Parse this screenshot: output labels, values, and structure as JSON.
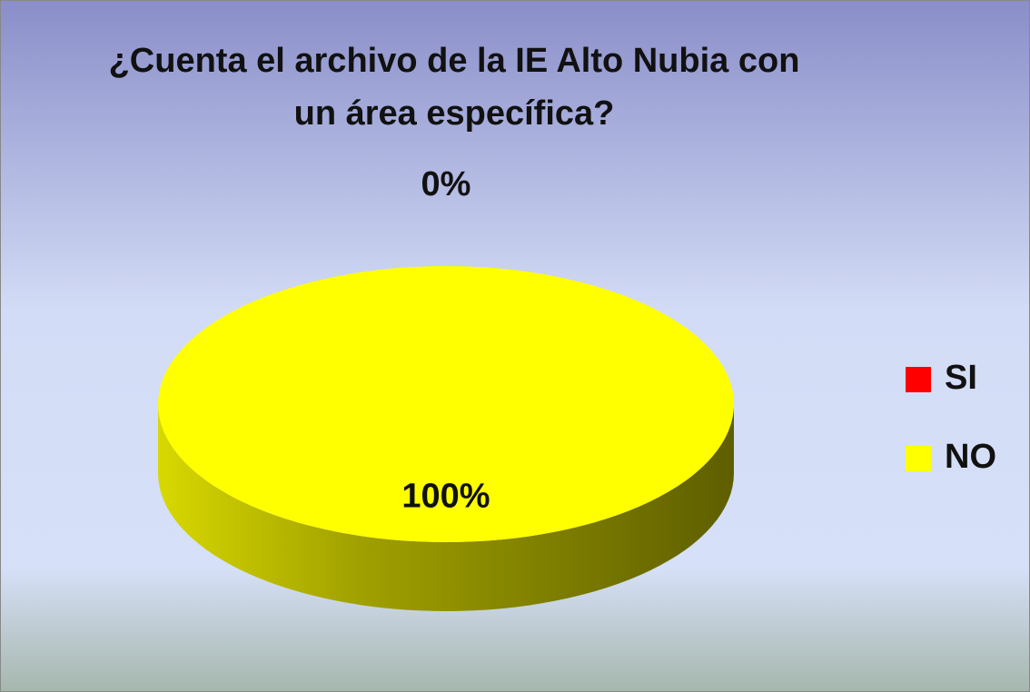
{
  "chart_data": {
    "type": "pie",
    "title": "¿Cuenta el archivo de la IE Alto Nubia con un área específica?",
    "categories": [
      "SI",
      "NO"
    ],
    "values": [
      0,
      100
    ],
    "value_labels": [
      "0%",
      "100%"
    ],
    "colors": [
      "#ff0000",
      "#ffff00"
    ],
    "legend": "right"
  }
}
